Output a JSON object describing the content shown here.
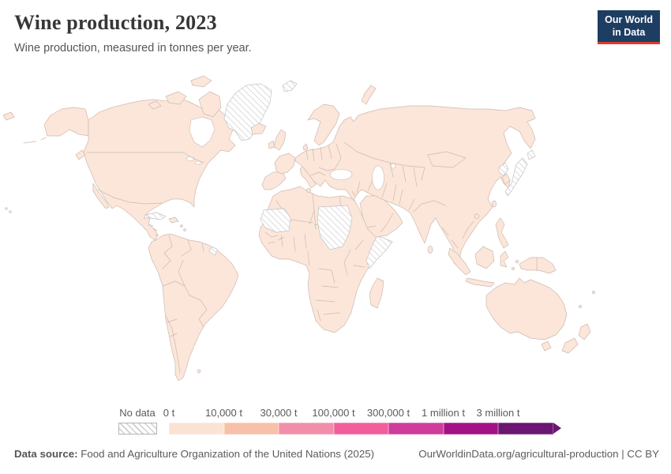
{
  "header": {
    "title": "Wine production, 2023",
    "subtitle": "Wine production, measured in tonnes per year.",
    "logo": {
      "line1": "Our World",
      "line2": "in Data",
      "bg_color": "#1d3d63",
      "accent_color": "#dc3a2b"
    }
  },
  "legend": {
    "no_data_label": "No data",
    "bins": [
      {
        "label": "0 t",
        "color": "#fbe3d4"
      },
      {
        "label": "10,000 t",
        "color": "#f8c0a9"
      },
      {
        "label": "30,000 t",
        "color": "#f18faa"
      },
      {
        "label": "100,000 t",
        "color": "#f25d9c"
      },
      {
        "label": "300,000 t",
        "color": "#cf3d9c"
      },
      {
        "label": "1 million t",
        "color": "#a31185"
      },
      {
        "label": "3 million t",
        "color": "#6b1672"
      }
    ]
  },
  "footer": {
    "source_label": "Data source:",
    "source_text": " Food and Agriculture Organization of the United Nations (2025)",
    "right_text": "OurWorldinData.org/agricultural-production | CC BY"
  },
  "map": {
    "ocean_color": "#ffffff",
    "land_color": "#fbe6d9",
    "border_color": "#cdb9b0",
    "hatch_line_color": "#cccccc",
    "no_data_regions": [
      "greenland",
      "svalbard",
      "mauritania-western-sahara",
      "sudan-south-sudan",
      "somalia",
      "japan",
      "north-korea",
      "cuba",
      "french-guiana"
    ]
  },
  "chart_data": {
    "type": "choropleth_world_map",
    "title": "Wine production, 2023",
    "subtitle": "Wine production, measured in tonnes per year.",
    "unit": "tonnes per year",
    "legend_position": "bottom",
    "legend_bins": [
      "0 t",
      "10,000 t",
      "30,000 t",
      "100,000 t",
      "300,000 t",
      "1 million t",
      "3 million t"
    ],
    "bin_colors": [
      "#fbe3d4",
      "#f8c0a9",
      "#f18faa",
      "#f25d9c",
      "#cf3d9c",
      "#a31185",
      "#6b1672"
    ],
    "no_data_label": "No data",
    "no_data_regions_visible": [
      "Greenland",
      "Svalbard",
      "Western Sahara",
      "Mauritania",
      "Sudan",
      "South Sudan",
      "Somalia",
      "Japan",
      "North Korea",
      "Cuba",
      "French Guiana"
    ],
    "visible_fill_note": "All countries with data are rendered in the lightest (0 t) bin color; no-data regions are gray diagonal hatching"
  }
}
